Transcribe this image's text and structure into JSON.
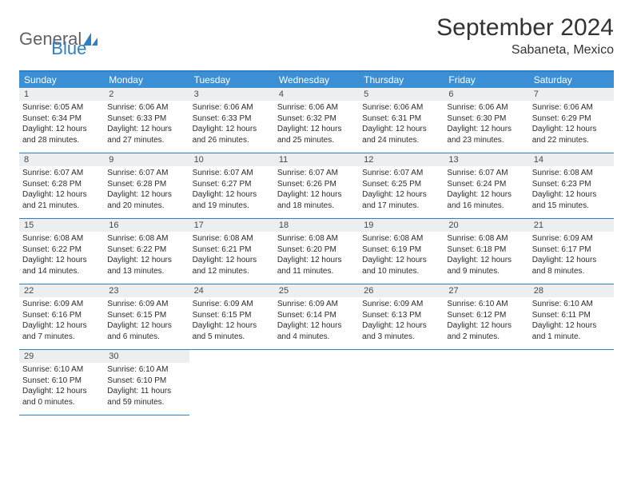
{
  "logo": {
    "part1": "General",
    "part2": "Blue"
  },
  "title": "September 2024",
  "location": "Sabaneta, Mexico",
  "colors": {
    "header_bg": "#3b8fd4",
    "border": "#2f7fc3",
    "daynum_bg": "#eceeef",
    "text": "#2b2b2b",
    "logo_gray": "#5f6368",
    "logo_blue": "#2f7fc3"
  },
  "weekdays": [
    "Sunday",
    "Monday",
    "Tuesday",
    "Wednesday",
    "Thursday",
    "Friday",
    "Saturday"
  ],
  "days": [
    {
      "n": "1",
      "sr": "6:05 AM",
      "ss": "6:34 PM",
      "dl": "12 hours and 28 minutes."
    },
    {
      "n": "2",
      "sr": "6:06 AM",
      "ss": "6:33 PM",
      "dl": "12 hours and 27 minutes."
    },
    {
      "n": "3",
      "sr": "6:06 AM",
      "ss": "6:33 PM",
      "dl": "12 hours and 26 minutes."
    },
    {
      "n": "4",
      "sr": "6:06 AM",
      "ss": "6:32 PM",
      "dl": "12 hours and 25 minutes."
    },
    {
      "n": "5",
      "sr": "6:06 AM",
      "ss": "6:31 PM",
      "dl": "12 hours and 24 minutes."
    },
    {
      "n": "6",
      "sr": "6:06 AM",
      "ss": "6:30 PM",
      "dl": "12 hours and 23 minutes."
    },
    {
      "n": "7",
      "sr": "6:06 AM",
      "ss": "6:29 PM",
      "dl": "12 hours and 22 minutes."
    },
    {
      "n": "8",
      "sr": "6:07 AM",
      "ss": "6:28 PM",
      "dl": "12 hours and 21 minutes."
    },
    {
      "n": "9",
      "sr": "6:07 AM",
      "ss": "6:28 PM",
      "dl": "12 hours and 20 minutes."
    },
    {
      "n": "10",
      "sr": "6:07 AM",
      "ss": "6:27 PM",
      "dl": "12 hours and 19 minutes."
    },
    {
      "n": "11",
      "sr": "6:07 AM",
      "ss": "6:26 PM",
      "dl": "12 hours and 18 minutes."
    },
    {
      "n": "12",
      "sr": "6:07 AM",
      "ss": "6:25 PM",
      "dl": "12 hours and 17 minutes."
    },
    {
      "n": "13",
      "sr": "6:07 AM",
      "ss": "6:24 PM",
      "dl": "12 hours and 16 minutes."
    },
    {
      "n": "14",
      "sr": "6:08 AM",
      "ss": "6:23 PM",
      "dl": "12 hours and 15 minutes."
    },
    {
      "n": "15",
      "sr": "6:08 AM",
      "ss": "6:22 PM",
      "dl": "12 hours and 14 minutes."
    },
    {
      "n": "16",
      "sr": "6:08 AM",
      "ss": "6:22 PM",
      "dl": "12 hours and 13 minutes."
    },
    {
      "n": "17",
      "sr": "6:08 AM",
      "ss": "6:21 PM",
      "dl": "12 hours and 12 minutes."
    },
    {
      "n": "18",
      "sr": "6:08 AM",
      "ss": "6:20 PM",
      "dl": "12 hours and 11 minutes."
    },
    {
      "n": "19",
      "sr": "6:08 AM",
      "ss": "6:19 PM",
      "dl": "12 hours and 10 minutes."
    },
    {
      "n": "20",
      "sr": "6:08 AM",
      "ss": "6:18 PM",
      "dl": "12 hours and 9 minutes."
    },
    {
      "n": "21",
      "sr": "6:09 AM",
      "ss": "6:17 PM",
      "dl": "12 hours and 8 minutes."
    },
    {
      "n": "22",
      "sr": "6:09 AM",
      "ss": "6:16 PM",
      "dl": "12 hours and 7 minutes."
    },
    {
      "n": "23",
      "sr": "6:09 AM",
      "ss": "6:15 PM",
      "dl": "12 hours and 6 minutes."
    },
    {
      "n": "24",
      "sr": "6:09 AM",
      "ss": "6:15 PM",
      "dl": "12 hours and 5 minutes."
    },
    {
      "n": "25",
      "sr": "6:09 AM",
      "ss": "6:14 PM",
      "dl": "12 hours and 4 minutes."
    },
    {
      "n": "26",
      "sr": "6:09 AM",
      "ss": "6:13 PM",
      "dl": "12 hours and 3 minutes."
    },
    {
      "n": "27",
      "sr": "6:10 AM",
      "ss": "6:12 PM",
      "dl": "12 hours and 2 minutes."
    },
    {
      "n": "28",
      "sr": "6:10 AM",
      "ss": "6:11 PM",
      "dl": "12 hours and 1 minute."
    },
    {
      "n": "29",
      "sr": "6:10 AM",
      "ss": "6:10 PM",
      "dl": "12 hours and 0 minutes."
    },
    {
      "n": "30",
      "sr": "6:10 AM",
      "ss": "6:10 PM",
      "dl": "11 hours and 59 minutes."
    }
  ],
  "labels": {
    "sunrise": "Sunrise:",
    "sunset": "Sunset:",
    "daylight": "Daylight:"
  }
}
